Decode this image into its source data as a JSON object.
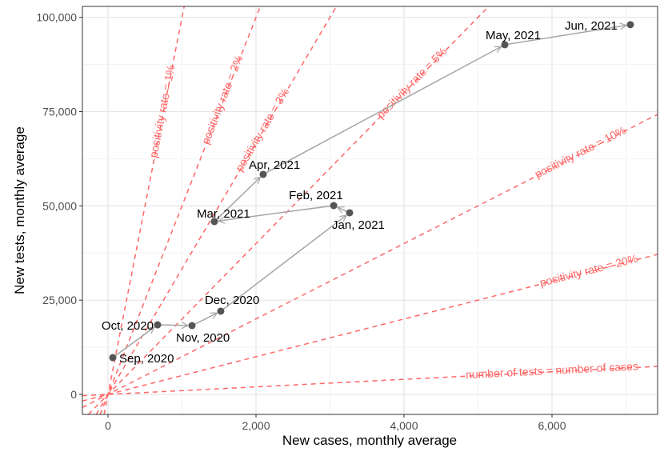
{
  "chart_data": {
    "type": "scatter",
    "xlabel": "New cases, monthly average",
    "ylabel": "New tests, monthly average",
    "xlim": [
      -346,
      7427
    ],
    "ylim": [
      -5300,
      102900
    ],
    "x_ticks": [
      0,
      2000,
      4000,
      6000
    ],
    "x_tick_labels": [
      "0",
      "2,000",
      "4,000",
      "6,000"
    ],
    "y_ticks": [
      0,
      25000,
      50000,
      75000,
      100000
    ],
    "y_tick_labels": [
      "0",
      "25,000",
      "50,000",
      "75,000",
      "100,000"
    ],
    "grid": true,
    "point_color": "#555555",
    "path_color": "#a6a6a6",
    "reference_line_color": "#ff6666",
    "points": [
      {
        "label": "Sep, 2020",
        "x": 65,
        "y": 9760
      },
      {
        "label": "Oct, 2020",
        "x": 670,
        "y": 18460
      },
      {
        "label": "Nov, 2020",
        "x": 1135,
        "y": 18250
      },
      {
        "label": "Dec, 2020",
        "x": 1524,
        "y": 22070
      },
      {
        "label": "Jan, 2021",
        "x": 3265,
        "y": 48170
      },
      {
        "label": "Feb, 2021",
        "x": 3050,
        "y": 50080
      },
      {
        "label": "Mar, 2021",
        "x": 1438,
        "y": 45840
      },
      {
        "label": "Apr, 2021",
        "x": 2097,
        "y": 58360
      },
      {
        "label": "May, 2021",
        "x": 5362,
        "y": 92740
      },
      {
        "label": "Jun, 2021",
        "x": 7059,
        "y": 98050
      }
    ],
    "reference_lines": [
      {
        "label": "positivity rate = 1%",
        "rate": 0.01,
        "label_x": 750
      },
      {
        "label": "positivity rate = 2%",
        "rate": 0.02,
        "label_x": 1560
      },
      {
        "label": "positivity rate = 3%",
        "rate": 0.03,
        "label_x": 2100
      },
      {
        "label": "positivity rate = 5%",
        "rate": 0.05,
        "label_x": 4117
      },
      {
        "label": "positivity rate = 10%",
        "rate": 0.1,
        "label_x": 6390
      },
      {
        "label": "positivity rate = 20%",
        "rate": 0.2,
        "label_x": 6500
      },
      {
        "label": "number of tests = number of cases",
        "rate": 1.0,
        "label_x": 6000
      }
    ]
  }
}
